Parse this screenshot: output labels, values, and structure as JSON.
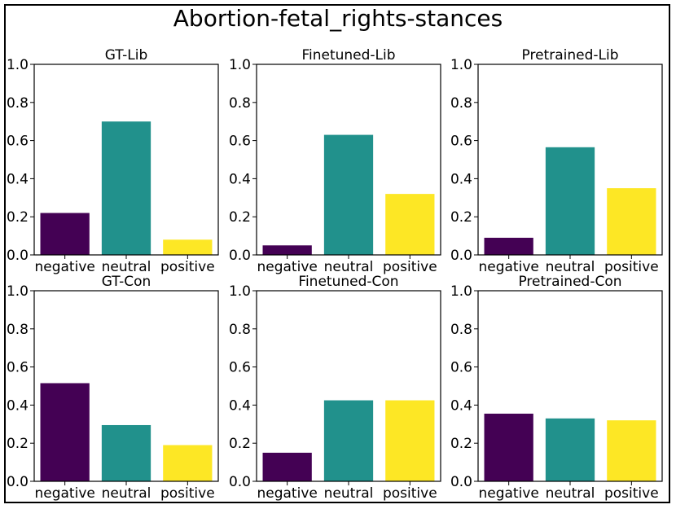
{
  "chart_data": {
    "title": "Abortion-fetal_rights-stances",
    "type": "bar",
    "categories": [
      "negative",
      "neutral",
      "positive"
    ],
    "colors": [
      "#440154",
      "#21918c",
      "#fde725"
    ],
    "ylim": [
      0,
      1.0
    ],
    "yticks": [
      "0.0",
      "0.2",
      "0.4",
      "0.6",
      "0.8",
      "1.0"
    ],
    "panels": [
      {
        "title": "GT-Lib",
        "values": [
          0.22,
          0.7,
          0.08
        ]
      },
      {
        "title": "Finetuned-Lib",
        "values": [
          0.05,
          0.63,
          0.32
        ]
      },
      {
        "title": "Pretrained-Lib",
        "values": [
          0.09,
          0.565,
          0.35
        ]
      },
      {
        "title": "GT-Con",
        "values": [
          0.515,
          0.295,
          0.19
        ]
      },
      {
        "title": "Finetuned-Con",
        "values": [
          0.15,
          0.425,
          0.425
        ]
      },
      {
        "title": "Pretrained-Con",
        "values": [
          0.355,
          0.33,
          0.32
        ]
      }
    ]
  }
}
